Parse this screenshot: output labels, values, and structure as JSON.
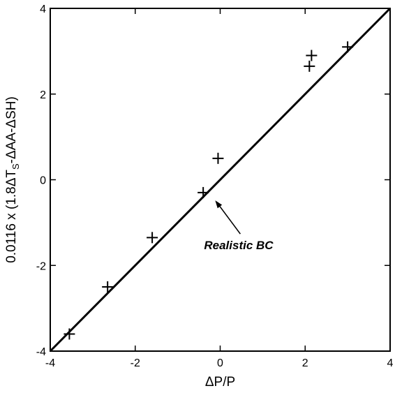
{
  "chart_data": {
    "type": "scatter",
    "title": "",
    "xlabel": "ΔP/P",
    "ylabel_parts": {
      "main": "0.0116 x (1.8ΔT",
      "sub": "S",
      "tail": "-ΔAA-ΔSH)"
    },
    "xlim": [
      -4,
      4
    ],
    "ylim": [
      -4,
      4
    ],
    "xticks": [
      -4,
      -2,
      0,
      2,
      4
    ],
    "yticks": [
      -4,
      -2,
      0,
      2,
      4
    ],
    "xtick_labels": [
      "-4",
      "-2",
      "0",
      "2",
      "4"
    ],
    "ytick_labels": [
      "-4",
      "-2",
      "0",
      "2",
      "4"
    ],
    "grid": false,
    "points": [
      {
        "x": -3.55,
        "y": -3.6
      },
      {
        "x": -2.65,
        "y": -2.5
      },
      {
        "x": -1.6,
        "y": -1.35
      },
      {
        "x": -0.4,
        "y": -0.3
      },
      {
        "x": -0.05,
        "y": 0.5
      },
      {
        "x": 2.1,
        "y": 2.65
      },
      {
        "x": 2.15,
        "y": 2.9
      },
      {
        "x": 3.0,
        "y": 3.1
      }
    ],
    "reference_line": {
      "x": [
        -4,
        4
      ],
      "y": [
        -4,
        4
      ]
    },
    "annotation": {
      "text": "Realistic BC",
      "points_to": {
        "x": -0.15,
        "y": -0.45
      }
    }
  }
}
